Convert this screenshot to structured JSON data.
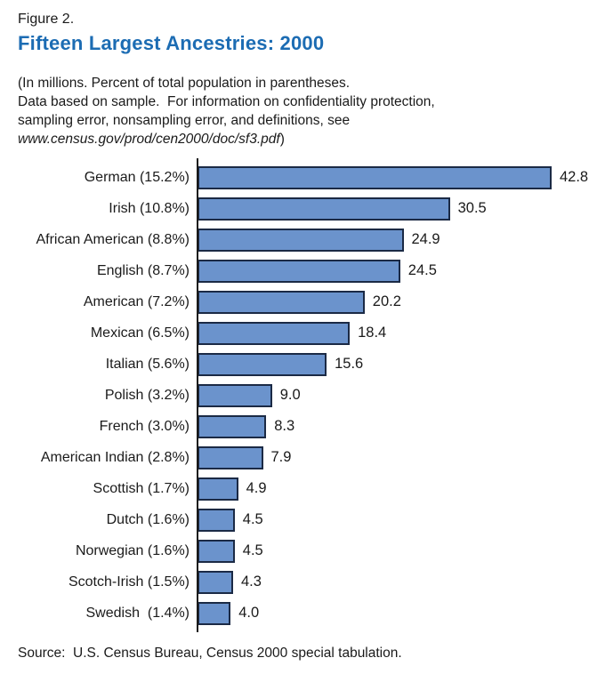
{
  "figure": {
    "label": "Figure 2.",
    "title": "Fifteen Largest Ancestries: 2000"
  },
  "note": {
    "line1": "(In millions. Percent of total population in parentheses.",
    "line2": "Data based on sample.  For information on confidentiality protection,",
    "line3": "sampling error, nonsampling error, and definitions, see",
    "url": "www.census.gov/prod/cen2000/doc/sf3.pdf",
    "url_suffix": ")"
  },
  "chart_data": {
    "type": "bar",
    "orientation": "horizontal",
    "title": "Fifteen Largest Ancestries: 2000",
    "unit": "millions",
    "categories": [
      "German (15.2%)",
      "Irish (10.8%)",
      "African American (8.8%)",
      "English (8.7%)",
      "American (7.2%)",
      "Mexican (6.5%)",
      "Italian (5.6%)",
      "Polish (3.2%)",
      "French (3.0%)",
      "American Indian (2.8%)",
      "Scottish (1.7%)",
      "Dutch (1.6%)",
      "Norwegian (1.6%)",
      "Scotch-Irish (1.5%)",
      "Swedish  (1.4%)"
    ],
    "values": [
      42.8,
      30.5,
      24.9,
      24.5,
      20.2,
      18.4,
      15.6,
      9.0,
      8.3,
      7.9,
      4.9,
      4.5,
      4.5,
      4.3,
      4.0
    ],
    "value_labels": [
      "42.8",
      "30.5",
      "24.9",
      "24.5",
      "20.2",
      "18.4",
      "15.6",
      "9.0",
      "8.3",
      "7.9",
      "4.9",
      "4.5",
      "4.5",
      "4.3",
      "4.0"
    ],
    "xlim": [
      0,
      46
    ],
    "grid": false,
    "legend": "none",
    "bar_color": "#6b93cc",
    "bar_border_color": "#1b2a45",
    "axis_color": "#1a1a1a"
  },
  "colors": {
    "title_blue": "#1c6cb3",
    "background": "#ffffff",
    "text": "#1a1a1a"
  },
  "source": "Source:  U.S. Census Bureau, Census 2000 special tabulation."
}
